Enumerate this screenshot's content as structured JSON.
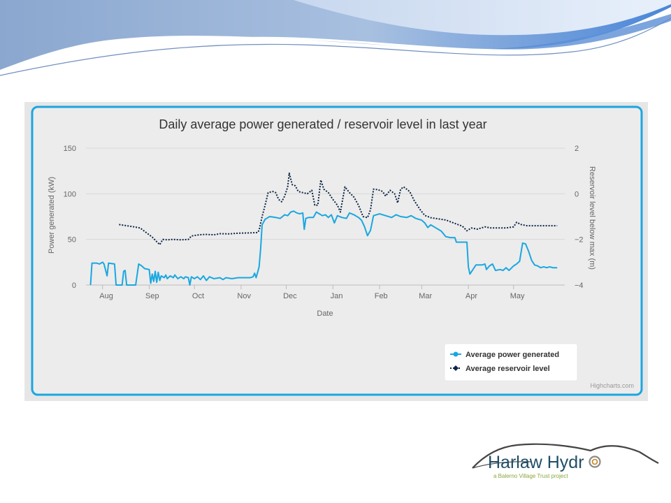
{
  "logo": {
    "name": "Harlaw Hydr",
    "tagline": "a Balerno Village Trust project"
  },
  "chart_data": {
    "type": "line",
    "title": "Daily average power generated / reservoir level in last year",
    "xlabel": "Date",
    "ylabel_left": "Power generated (kW)",
    "ylabel_right": "Reservoir level below max (m)",
    "x_ticks": [
      "Aug",
      "Sep",
      "Oct",
      "Nov",
      "Dec",
      "Jan",
      "Feb",
      "Mar",
      "Apr",
      "May"
    ],
    "y_left_ticks": [
      "0",
      "50",
      "100",
      "150"
    ],
    "y_right_ticks": [
      "−4",
      "−2",
      "0",
      "2"
    ],
    "ylim_left": [
      0,
      150
    ],
    "ylim_right": [
      -4,
      2
    ],
    "grid": true,
    "legend_position": "bottom-right",
    "credit": "Highcharts.com",
    "series": [
      {
        "name": "Average power generated",
        "color": "#1aa7e0",
        "axis": "left",
        "points": [
          [
            "2016-07-24",
            0
          ],
          [
            "2016-07-25",
            24
          ],
          [
            "2016-07-28",
            24
          ],
          [
            "2016-07-30",
            23
          ],
          [
            "2016-08-01",
            25
          ],
          [
            "2016-08-02",
            23
          ],
          [
            "2016-08-04",
            10
          ],
          [
            "2016-08-05",
            24
          ],
          [
            "2016-08-09",
            23
          ],
          [
            "2016-08-10",
            0
          ],
          [
            "2016-08-14",
            0
          ],
          [
            "2016-08-15",
            15
          ],
          [
            "2016-08-16",
            16
          ],
          [
            "2016-08-17",
            0
          ],
          [
            "2016-08-23",
            0
          ],
          [
            "2016-08-25",
            23
          ],
          [
            "2016-08-27",
            21
          ],
          [
            "2016-08-29",
            18
          ],
          [
            "2016-09-01",
            17
          ],
          [
            "2016-09-02",
            2
          ],
          [
            "2016-09-03",
            12
          ],
          [
            "2016-09-04",
            4
          ],
          [
            "2016-09-05",
            15
          ],
          [
            "2016-09-06",
            3
          ],
          [
            "2016-09-07",
            14
          ],
          [
            "2016-09-08",
            5
          ],
          [
            "2016-09-09",
            10
          ],
          [
            "2016-09-11",
            8
          ],
          [
            "2016-09-12",
            11
          ],
          [
            "2016-09-13",
            7
          ],
          [
            "2016-09-15",
            10
          ],
          [
            "2016-09-17",
            8
          ],
          [
            "2016-09-18",
            11
          ],
          [
            "2016-09-20",
            7
          ],
          [
            "2016-09-22",
            9
          ],
          [
            "2016-09-24",
            7
          ],
          [
            "2016-09-25",
            9
          ],
          [
            "2016-09-27",
            8
          ],
          [
            "2016-09-28",
            0
          ],
          [
            "2016-09-29",
            9
          ],
          [
            "2016-10-01",
            7
          ],
          [
            "2016-10-03",
            9
          ],
          [
            "2016-10-05",
            6
          ],
          [
            "2016-10-07",
            10
          ],
          [
            "2016-10-09",
            5
          ],
          [
            "2016-10-11",
            9
          ],
          [
            "2016-10-14",
            7
          ],
          [
            "2016-10-18",
            8
          ],
          [
            "2016-10-20",
            6
          ],
          [
            "2016-10-22",
            8
          ],
          [
            "2016-10-26",
            7
          ],
          [
            "2016-10-30",
            8
          ],
          [
            "2016-11-03",
            8
          ],
          [
            "2016-11-07",
            8
          ],
          [
            "2016-11-09",
            9
          ],
          [
            "2016-11-10",
            13
          ],
          [
            "2016-11-11",
            8
          ],
          [
            "2016-11-12",
            14
          ],
          [
            "2016-11-13",
            20
          ],
          [
            "2016-11-14",
            40
          ],
          [
            "2016-11-15",
            66
          ],
          [
            "2016-11-17",
            72
          ],
          [
            "2016-11-20",
            75
          ],
          [
            "2016-11-24",
            74
          ],
          [
            "2016-11-27",
            73
          ],
          [
            "2016-11-30",
            77
          ],
          [
            "2016-12-02",
            76
          ],
          [
            "2016-12-04",
            80
          ],
          [
            "2016-12-06",
            81
          ],
          [
            "2016-12-08",
            79
          ],
          [
            "2016-12-10",
            78
          ],
          [
            "2016-12-12",
            79
          ],
          [
            "2016-12-13",
            61
          ],
          [
            "2016-12-14",
            73
          ],
          [
            "2016-12-16",
            74
          ],
          [
            "2016-12-19",
            74
          ],
          [
            "2016-12-21",
            80
          ],
          [
            "2016-12-23",
            78
          ],
          [
            "2016-12-25",
            76
          ],
          [
            "2016-12-27",
            77
          ],
          [
            "2016-12-29",
            74
          ],
          [
            "2016-12-31",
            77
          ],
          [
            "2017-01-02",
            68
          ],
          [
            "2017-01-04",
            76
          ],
          [
            "2017-01-07",
            74
          ],
          [
            "2017-01-10",
            73
          ],
          [
            "2017-01-12",
            79
          ],
          [
            "2017-01-15",
            77
          ],
          [
            "2017-01-18",
            74
          ],
          [
            "2017-01-20",
            71
          ],
          [
            "2017-01-22",
            64
          ],
          [
            "2017-01-24",
            54
          ],
          [
            "2017-01-26",
            60
          ],
          [
            "2017-01-28",
            76
          ],
          [
            "2017-02-01",
            78
          ],
          [
            "2017-02-05",
            76
          ],
          [
            "2017-02-09",
            74
          ],
          [
            "2017-02-12",
            77
          ],
          [
            "2017-02-15",
            75
          ],
          [
            "2017-02-19",
            74
          ],
          [
            "2017-02-22",
            76
          ],
          [
            "2017-02-25",
            73
          ],
          [
            "2017-03-01",
            71
          ],
          [
            "2017-03-03",
            68
          ],
          [
            "2017-03-05",
            63
          ],
          [
            "2017-03-07",
            66
          ],
          [
            "2017-03-10",
            63
          ],
          [
            "2017-03-14",
            59
          ],
          [
            "2017-03-17",
            53
          ],
          [
            "2017-03-20",
            52
          ],
          [
            "2017-03-23",
            52
          ],
          [
            "2017-03-24",
            47
          ],
          [
            "2017-03-28",
            47
          ],
          [
            "2017-03-31",
            47
          ],
          [
            "2017-04-01",
            20
          ],
          [
            "2017-04-02",
            12
          ],
          [
            "2017-04-04",
            17
          ],
          [
            "2017-04-06",
            22
          ],
          [
            "2017-04-10",
            22
          ],
          [
            "2017-04-12",
            23
          ],
          [
            "2017-04-13",
            17
          ],
          [
            "2017-04-15",
            21
          ],
          [
            "2017-04-17",
            23
          ],
          [
            "2017-04-19",
            16
          ],
          [
            "2017-04-22",
            17
          ],
          [
            "2017-04-24",
            16
          ],
          [
            "2017-04-26",
            19
          ],
          [
            "2017-04-28",
            16
          ],
          [
            "2017-05-01",
            21
          ],
          [
            "2017-05-03",
            23
          ],
          [
            "2017-05-05",
            26
          ],
          [
            "2017-05-07",
            46
          ],
          [
            "2017-05-09",
            45
          ],
          [
            "2017-05-11",
            37
          ],
          [
            "2017-05-13",
            27
          ],
          [
            "2017-05-15",
            22
          ],
          [
            "2017-05-17",
            21
          ],
          [
            "2017-05-19",
            19
          ],
          [
            "2017-05-21",
            20
          ],
          [
            "2017-05-23",
            19
          ],
          [
            "2017-05-25",
            20
          ],
          [
            "2017-05-27",
            19
          ],
          [
            "2017-05-30",
            19
          ]
        ]
      },
      {
        "name": "Average reservoir level",
        "color": "#0c2445",
        "axis": "right",
        "points": [
          [
            "2016-08-12",
            -1.35
          ],
          [
            "2016-08-17",
            -1.4
          ],
          [
            "2016-08-22",
            -1.45
          ],
          [
            "2016-08-26",
            -1.5
          ],
          [
            "2016-08-30",
            -1.7
          ],
          [
            "2016-09-03",
            -1.9
          ],
          [
            "2016-09-06",
            -2.1
          ],
          [
            "2016-09-08",
            -2.23
          ],
          [
            "2016-09-10",
            -2.0
          ],
          [
            "2016-09-13",
            -2.02
          ],
          [
            "2016-09-17",
            -2.0
          ],
          [
            "2016-09-22",
            -2.02
          ],
          [
            "2016-09-27",
            -2.0
          ],
          [
            "2016-09-29",
            -1.85
          ],
          [
            "2016-10-04",
            -1.8
          ],
          [
            "2016-10-08",
            -1.78
          ],
          [
            "2016-10-14",
            -1.8
          ],
          [
            "2016-10-18",
            -1.75
          ],
          [
            "2016-10-24",
            -1.76
          ],
          [
            "2016-10-30",
            -1.73
          ],
          [
            "2016-11-05",
            -1.72
          ],
          [
            "2016-11-12",
            -1.7
          ],
          [
            "2016-11-13",
            -1.6
          ],
          [
            "2016-11-15",
            -1.0
          ],
          [
            "2016-11-17",
            -0.5
          ],
          [
            "2016-11-19",
            0.05
          ],
          [
            "2016-11-22",
            0.1
          ],
          [
            "2016-11-24",
            0.05
          ],
          [
            "2016-11-26",
            -0.25
          ],
          [
            "2016-11-28",
            -0.35
          ],
          [
            "2016-11-30",
            -0.1
          ],
          [
            "2016-12-02",
            0.3
          ],
          [
            "2016-12-03",
            0.9
          ],
          [
            "2016-12-05",
            0.4
          ],
          [
            "2016-12-07",
            0.35
          ],
          [
            "2016-12-09",
            0.1
          ],
          [
            "2016-12-12",
            0.05
          ],
          [
            "2016-12-15",
            0.0
          ],
          [
            "2016-12-18",
            0.15
          ],
          [
            "2016-12-20",
            -0.5
          ],
          [
            "2016-12-22",
            -0.5
          ],
          [
            "2016-12-24",
            0.6
          ],
          [
            "2016-12-26",
            0.2
          ],
          [
            "2016-12-29",
            0.05
          ],
          [
            "2017-01-01",
            -0.25
          ],
          [
            "2017-01-04",
            -0.5
          ],
          [
            "2017-01-06",
            -0.8
          ],
          [
            "2017-01-09",
            0.3
          ],
          [
            "2017-01-12",
            0.05
          ],
          [
            "2017-01-15",
            -0.15
          ],
          [
            "2017-01-18",
            -0.5
          ],
          [
            "2017-01-21",
            -1.0
          ],
          [
            "2017-01-24",
            -1.05
          ],
          [
            "2017-01-26",
            -0.7
          ],
          [
            "2017-01-28",
            0.2
          ],
          [
            "2017-01-31",
            0.18
          ],
          [
            "2017-02-03",
            0.1
          ],
          [
            "2017-02-05",
            -0.1
          ],
          [
            "2017-02-08",
            0.15
          ],
          [
            "2017-02-11",
            0.0
          ],
          [
            "2017-02-13",
            -0.4
          ],
          [
            "2017-02-15",
            0.2
          ],
          [
            "2017-02-17",
            0.3
          ],
          [
            "2017-02-21",
            0.1
          ],
          [
            "2017-02-24",
            -0.3
          ],
          [
            "2017-02-28",
            -0.7
          ],
          [
            "2017-03-03",
            -0.95
          ],
          [
            "2017-03-07",
            -1.05
          ],
          [
            "2017-03-12",
            -1.1
          ],
          [
            "2017-03-17",
            -1.15
          ],
          [
            "2017-03-21",
            -1.25
          ],
          [
            "2017-03-25",
            -1.35
          ],
          [
            "2017-03-28",
            -1.42
          ],
          [
            "2017-03-31",
            -1.62
          ],
          [
            "2017-04-03",
            -1.5
          ],
          [
            "2017-04-07",
            -1.55
          ],
          [
            "2017-04-12",
            -1.45
          ],
          [
            "2017-04-16",
            -1.5
          ],
          [
            "2017-04-21",
            -1.5
          ],
          [
            "2017-04-26",
            -1.5
          ],
          [
            "2017-05-01",
            -1.45
          ],
          [
            "2017-05-03",
            -1.25
          ],
          [
            "2017-05-06",
            -1.35
          ],
          [
            "2017-05-10",
            -1.4
          ],
          [
            "2017-05-15",
            -1.4
          ],
          [
            "2017-05-20",
            -1.4
          ],
          [
            "2017-05-25",
            -1.4
          ],
          [
            "2017-05-30",
            -1.4
          ]
        ]
      }
    ]
  }
}
